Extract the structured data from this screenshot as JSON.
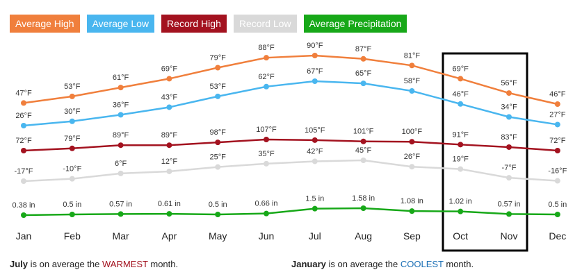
{
  "chart_data": {
    "type": "line",
    "categories": [
      "Jan",
      "Feb",
      "Mar",
      "Apr",
      "May",
      "Jun",
      "Jul",
      "Aug",
      "Sep",
      "Oct",
      "Nov",
      "Dec"
    ],
    "series": [
      {
        "name": "Average High",
        "color": "#f07f3c",
        "values": [
          47,
          53,
          61,
          69,
          79,
          88,
          90,
          87,
          81,
          69,
          56,
          46
        ],
        "value_labels": [
          "47°F",
          "53°F",
          "61°F",
          "69°F",
          "79°F",
          "88°F",
          "90°F",
          "87°F",
          "81°F",
          "69°F",
          "56°F",
          "46°F"
        ]
      },
      {
        "name": "Average Low",
        "color": "#49b6ef",
        "values": [
          26,
          30,
          36,
          43,
          53,
          62,
          67,
          65,
          58,
          46,
          34,
          27
        ],
        "value_labels": [
          "26°F",
          "30°F",
          "36°F",
          "43°F",
          "53°F",
          "62°F",
          "67°F",
          "65°F",
          "58°F",
          "46°F",
          "34°F",
          "27°F"
        ]
      },
      {
        "name": "Record High",
        "color": "#a3121f",
        "values": [
          72,
          79,
          89,
          89,
          98,
          107,
          105,
          101,
          100,
          91,
          83,
          72
        ],
        "value_labels": [
          "72°F",
          "79°F",
          "89°F",
          "89°F",
          "98°F",
          "107°F",
          "105°F",
          "101°F",
          "100°F",
          "91°F",
          "83°F",
          "72°F"
        ]
      },
      {
        "name": "Record Low",
        "color": "#d9d9d9",
        "values": [
          -17,
          -10,
          6,
          12,
          25,
          35,
          42,
          45,
          26,
          19,
          -7,
          -16
        ],
        "value_labels": [
          "-17°F",
          "-10°F",
          "6°F",
          "12°F",
          "25°F",
          "35°F",
          "42°F",
          "45°F",
          "26°F",
          "19°F",
          "-7°F",
          "-16°F"
        ]
      },
      {
        "name": "Average Precipitation",
        "color": "#17a818",
        "values": [
          0.38,
          0.5,
          0.57,
          0.61,
          0.5,
          0.66,
          1.5,
          1.58,
          1.08,
          1.02,
          0.57,
          0.5
        ],
        "value_labels": [
          "0.38 in",
          "0.5 in",
          "0.57 in",
          "0.61 in",
          "0.5 in",
          "0.66 in",
          "1.5 in",
          "1.58 in",
          "1.08 in",
          "1.02 in",
          "0.57 in",
          "0.5 in"
        ]
      }
    ]
  },
  "notes": [
    {
      "bold": "July",
      "text": "is on average the",
      "highlight": "WARMEST",
      "color": "#a3121f",
      "end": "month."
    },
    {
      "bold": "January",
      "text": "is on average the",
      "highlight": "COOLEST",
      "color": "#1a6fb5",
      "end": "month."
    }
  ]
}
